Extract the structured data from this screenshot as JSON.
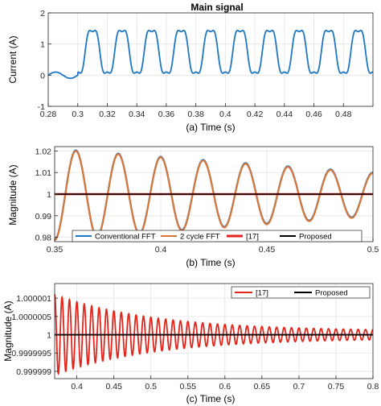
{
  "chart_data": [
    {
      "type": "line",
      "title": "Main signal",
      "caption": "(a) Time (s)",
      "ylabel": "Current (A)",
      "xlim": [
        0.28,
        0.5
      ],
      "ylim": [
        -1,
        2
      ],
      "xticks": [
        "0.28",
        "0.3",
        "0.32",
        "0.34",
        "0.36",
        "0.38",
        "0.4",
        "0.42",
        "0.44",
        "0.46",
        "0.48"
      ],
      "yticks": [
        "-1",
        "0",
        "1",
        "2"
      ],
      "grid": true,
      "color": "#1f77c4",
      "series": [
        {
          "disturbance_start": 0.3,
          "fundamental_hz": 50,
          "pre_disturbance_amplitude": 0.1,
          "peak": 1.7,
          "trough": -0.2,
          "description": "distorted current waveform"
        }
      ]
    },
    {
      "type": "line",
      "caption": "(b) Time (s)",
      "ylabel": "Magnitude (A)",
      "xlim": [
        0.35,
        0.5
      ],
      "ylim": [
        0.978,
        1.022
      ],
      "xticks": [
        "0.35",
        "0.4",
        "0.45",
        "0.5"
      ],
      "yticks": [
        "0.98",
        "0.99",
        "1",
        "1.01",
        "1.02"
      ],
      "grid": true,
      "legend": "bottom",
      "series": [
        {
          "name": "Conventional FFT",
          "color": "#1f77c4",
          "start_amplitude": 0.021,
          "end_amplitude": 0.01,
          "period_s": 0.02
        },
        {
          "name": "2 cycle FFT",
          "color": "#d9773a",
          "start_amplitude": 0.021,
          "end_amplitude": 0.01,
          "period_s": 0.02
        },
        {
          "name": "[17]",
          "color": "#e3261c",
          "value": 1
        },
        {
          "name": "Proposed",
          "color": "#000000",
          "value": 1
        }
      ]
    },
    {
      "type": "line",
      "caption": "(c) Time (s)",
      "ylabel": "Magnitude (A)",
      "xlim": [
        0.37,
        0.8
      ],
      "ylim": [
        0.9999988,
        1.0000014
      ],
      "xticks": [
        "0.4",
        "0.45",
        "0.5",
        "0.55",
        "0.6",
        "0.65",
        "0.7",
        "0.75",
        "0.8"
      ],
      "yticks": [
        "0.999999",
        "0.9999995",
        "1",
        "1.0000005",
        "1.000001"
      ],
      "grid": true,
      "legend": "top-right",
      "series": [
        {
          "name": "[17]",
          "color": "#e3261c",
          "start_amplitude": 1.1e-06,
          "end_amplitude": 1e-07,
          "period_s": 0.01
        },
        {
          "name": "Proposed",
          "color": "#000000",
          "value": 1
        }
      ]
    }
  ]
}
